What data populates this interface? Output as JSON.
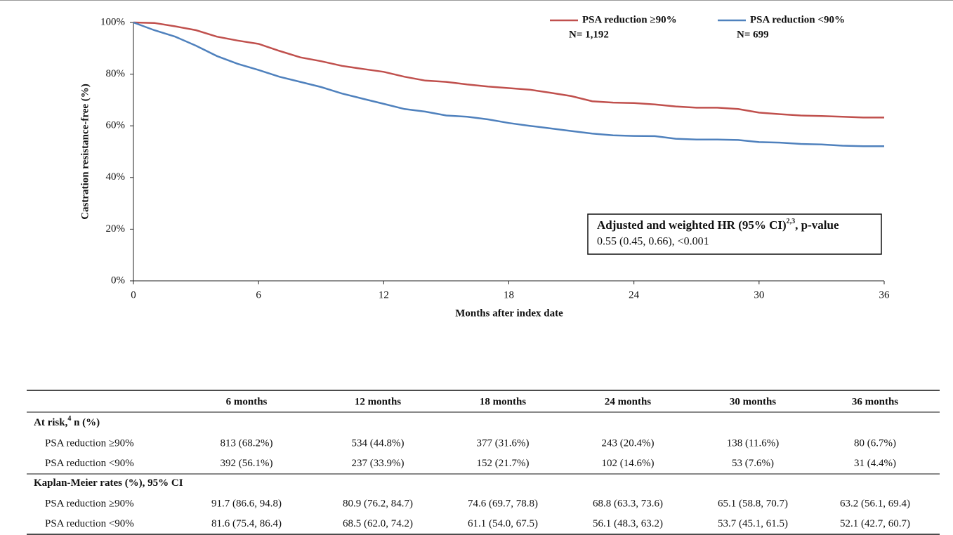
{
  "chart_data": {
    "type": "line",
    "x_label": "Months after index date",
    "y_label": "Castration resistance-free (%)",
    "x": [
      0,
      1,
      2,
      3,
      4,
      5,
      6,
      7,
      8,
      9,
      10,
      11,
      12,
      13,
      14,
      15,
      16,
      17,
      18,
      19,
      20,
      21,
      22,
      23,
      24,
      25,
      26,
      27,
      28,
      29,
      30,
      31,
      32,
      33,
      34,
      35,
      36
    ],
    "series": [
      {
        "name": "PSA reduction ≥90%",
        "n": "N= 1,192",
        "color": "#c0504d",
        "values": [
          100,
          99.8,
          98.5,
          97,
          94.5,
          93,
          91.7,
          89,
          86.5,
          85,
          83.2,
          82,
          80.9,
          79,
          77.5,
          77,
          76,
          75.2,
          74.6,
          74,
          72.8,
          71.5,
          69.5,
          69,
          68.8,
          68.3,
          67.5,
          67,
          67,
          66.5,
          65.1,
          64.5,
          64,
          63.8,
          63.5,
          63.2,
          63.2
        ]
      },
      {
        "name": "PSA reduction <90%",
        "n": "N= 699",
        "color": "#4f81bd",
        "values": [
          100,
          97,
          94.5,
          91,
          87,
          84,
          81.6,
          79,
          77,
          75,
          72.5,
          70.5,
          68.5,
          66.5,
          65.5,
          64,
          63.5,
          62.5,
          61.1,
          60,
          59,
          58,
          57,
          56.3,
          56.1,
          56,
          55,
          54.7,
          54.7,
          54.5,
          53.7,
          53.5,
          53,
          52.8,
          52.3,
          52.1,
          52.1
        ]
      }
    ],
    "xlim": [
      0,
      36
    ],
    "xticks": [
      0,
      6,
      12,
      18,
      24,
      30,
      36
    ],
    "ylim": [
      0,
      100
    ],
    "yticks": [
      {
        "value": 0,
        "label": "0%"
      },
      {
        "value": 20,
        "label": "20%"
      },
      {
        "value": 40,
        "label": "40%"
      },
      {
        "value": 60,
        "label": "60%"
      },
      {
        "value": 80,
        "label": "80%"
      },
      {
        "value": 100,
        "label": "100%"
      }
    ],
    "annotation": {
      "title": "Adjusted and weighted HR (95% CI)",
      "superscript": "2,3",
      "title_suffix": ", p-value",
      "text": "0.55 (0.45, 0.66), <0.001"
    }
  },
  "table": {
    "columns": [
      "6 months",
      "12 months",
      "18 months",
      "24 months",
      "30 months",
      "36 months"
    ],
    "sections": [
      {
        "title": "At risk,",
        "superscript": "4",
        "title_suffix": " n (%)",
        "rows": [
          {
            "label": "PSA reduction ≥90%",
            "cells": [
              "813 (68.2%)",
              "534 (44.8%)",
              "377 (31.6%)",
              "243 (20.4%)",
              "138 (11.6%)",
              "80 (6.7%)"
            ]
          },
          {
            "label": "PSA reduction <90%",
            "cells": [
              "392 (56.1%)",
              "237 (33.9%)",
              "152 (21.7%)",
              "102 (14.6%)",
              "53 (7.6%)",
              "31 (4.4%)"
            ]
          }
        ]
      },
      {
        "title": "Kaplan-Meier rates (%), 95% CI",
        "rows": [
          {
            "label": "PSA reduction ≥90%",
            "cells": [
              "91.7 (86.6, 94.8)",
              "80.9 (76.2, 84.7)",
              "74.6 (69.7, 78.8)",
              "68.8 (63.3, 73.6)",
              "65.1 (58.8, 70.7)",
              "63.2 (56.1, 69.4)"
            ]
          },
          {
            "label": "PSA reduction <90%",
            "cells": [
              "81.6 (75.4, 86.4)",
              "68.5 (62.0, 74.2)",
              "61.1 (54.0, 67.5)",
              "56.1 (48.3, 63.2)",
              "53.7 (45.1, 61.5)",
              "52.1 (42.7, 60.7)"
            ]
          }
        ]
      }
    ]
  }
}
